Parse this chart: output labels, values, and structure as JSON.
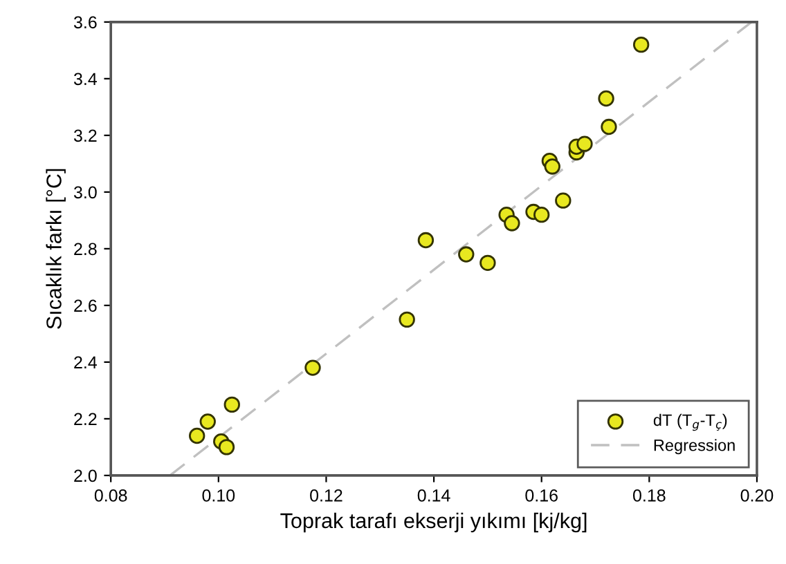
{
  "chart_data": {
    "type": "scatter",
    "xlabel": "Toprak tarafı ekserji yıkımı [kj/kg]",
    "ylabel": "Sıcaklık farkı [°C]",
    "xlim": [
      0.08,
      0.2
    ],
    "xticks": [
      {
        "value": 0.08,
        "label": "0.08"
      },
      {
        "value": 0.1,
        "label": "0.10"
      },
      {
        "value": 0.12,
        "label": "0.12"
      },
      {
        "value": 0.14,
        "label": "0.14"
      },
      {
        "value": 0.16,
        "label": "0.16"
      },
      {
        "value": 0.18,
        "label": "0.18"
      },
      {
        "value": 0.2,
        "label": "0.20"
      }
    ],
    "ylim": [
      2.0,
      3.6
    ],
    "yticks": [
      {
        "value": 2.0,
        "label": "2.0"
      },
      {
        "value": 2.2,
        "label": "2.2"
      },
      {
        "value": 2.4,
        "label": "2.4"
      },
      {
        "value": 2.6,
        "label": "2.6"
      },
      {
        "value": 2.8,
        "label": "2.8"
      },
      {
        "value": 3.0,
        "label": "3.0"
      },
      {
        "value": 3.2,
        "label": "3.2"
      },
      {
        "value": 3.4,
        "label": "3.4"
      },
      {
        "value": 3.6,
        "label": "3.6"
      }
    ],
    "grid": false,
    "legend": "bottom right",
    "series": [
      {
        "name": "dT (T$_{g}$-T$_{ç}$)",
        "color": "#e8e820",
        "marker": "circle",
        "x": [
          0.096,
          0.098,
          0.1005,
          0.1015,
          0.1025,
          0.1175,
          0.135,
          0.1385,
          0.146,
          0.15,
          0.1535,
          0.1545,
          0.1585,
          0.16,
          0.164,
          0.1615,
          0.162,
          0.1665,
          0.1665,
          0.168,
          0.172,
          0.1725,
          0.1785
        ],
        "values": [
          2.14,
          2.19,
          2.12,
          2.1,
          2.25,
          2.38,
          2.55,
          2.83,
          2.78,
          2.75,
          2.92,
          2.89,
          2.93,
          2.92,
          2.97,
          3.11,
          3.09,
          3.14,
          3.16,
          3.17,
          3.33,
          3.23,
          3.52
        ]
      },
      {
        "name": "Regression",
        "type": "line",
        "color": "#c0c0c0",
        "line_style": "dashed",
        "marker": "none",
        "x": [
          0.091,
          0.199
        ],
        "values": [
          2.0,
          3.6
        ]
      }
    ]
  }
}
